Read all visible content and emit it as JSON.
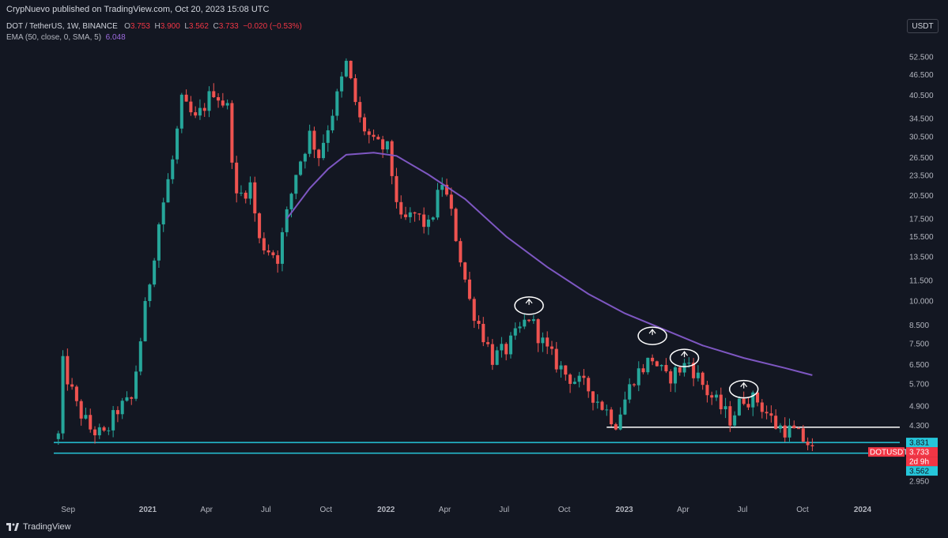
{
  "header": {
    "published": "CrypNuevo published on TradingView.com, Oct 20, 2023 15:08 UTC"
  },
  "legend": {
    "symbol": "DOT / TetherUS, 1W, BINANCE",
    "open_label": "O",
    "open": "3.753",
    "high_label": "H",
    "high": "3.900",
    "low_label": "L",
    "low": "3.562",
    "close_label": "C",
    "close": "3.733",
    "change": "−0.020 (−0.53%)",
    "ema_label": "EMA (50, close, 0, SMA, 5)",
    "ema_value": "6.048"
  },
  "currency_button": "USDT",
  "footer": {
    "brand": "TradingView"
  },
  "colors": {
    "background": "#131722",
    "up": "#26a69a",
    "down": "#ef5350",
    "ema": "#7e57c2",
    "support_line": "#26c6da",
    "white_line": "#ffffff"
  },
  "chart_data": {
    "type": "candlestick",
    "timeframe": "1W",
    "yscale": "log",
    "ylim": [
      2.55,
      60
    ],
    "xrange": [
      "2020-08-10",
      "2024-03-04"
    ],
    "y_ticks": [
      "52.500",
      "46.500",
      "40.500",
      "34.500",
      "30.500",
      "26.500",
      "23.500",
      "20.500",
      "17.500",
      "15.500",
      "13.500",
      "11.500",
      "10.000",
      "8.500",
      "7.500",
      "6.500",
      "5.700",
      "4.900",
      "4.300",
      "2.950"
    ],
    "x_ticks": [
      "Sep",
      "2021",
      "Apr",
      "Jul",
      "Oct",
      "2022",
      "Apr",
      "Jul",
      "Oct",
      "2023",
      "Apr",
      "Jul",
      "Oct",
      "2024"
    ],
    "x_tick_dates": [
      "2020-09-01",
      "2021-01-01",
      "2021-04-01",
      "2021-07-01",
      "2021-10-01",
      "2022-01-01",
      "2022-04-01",
      "2022-07-01",
      "2022-10-01",
      "2023-01-01",
      "2023-04-01",
      "2023-07-01",
      "2023-10-01",
      "2024-01-01"
    ],
    "price_tags": [
      {
        "label": "3.831",
        "value": 3.831,
        "color": "#26c6da"
      },
      {
        "label": "DOTUSDT",
        "value": 3.733,
        "color": "#f23645",
        "extra": "3.733"
      },
      {
        "label": "2d 9h",
        "value": 3.6,
        "color": "#f23645"
      },
      {
        "label": "3.562",
        "value": 3.562,
        "color": "#26c6da"
      }
    ],
    "horizontal_lines": [
      {
        "value": 4.25,
        "start": "2022-12-05",
        "end": "2024-03-04",
        "color": "#ffffff"
      },
      {
        "value": 3.831,
        "start": "2020-08-10",
        "end": "2024-03-04",
        "color": "#26c6da"
      },
      {
        "value": 3.562,
        "start": "2020-08-10",
        "end": "2024-03-04",
        "color": "#26c6da"
      }
    ],
    "anchors": [
      [
        "2020-08-17",
        4.0
      ],
      [
        "2020-08-24",
        6.5
      ],
      [
        "2020-09-14",
        4.9
      ],
      [
        "2020-10-05",
        4.2
      ],
      [
        "2020-10-26",
        4.0
      ],
      [
        "2020-11-16",
        4.8
      ],
      [
        "2020-12-07",
        5.1
      ],
      [
        "2020-12-28",
        9.5
      ],
      [
        "2021-01-18",
        17.0
      ],
      [
        "2021-02-08",
        26.0
      ],
      [
        "2021-02-22",
        38.5
      ],
      [
        "2021-03-15",
        34.0
      ],
      [
        "2021-04-12",
        42.0
      ],
      [
        "2021-05-03",
        37.0
      ],
      [
        "2021-05-17",
        20.0
      ],
      [
        "2021-06-07",
        22.0
      ],
      [
        "2021-06-21",
        15.0
      ],
      [
        "2021-07-19",
        13.5
      ],
      [
        "2021-08-16",
        24.0
      ],
      [
        "2021-09-06",
        31.0
      ],
      [
        "2021-09-20",
        27.0
      ],
      [
        "2021-10-18",
        40.0
      ],
      [
        "2021-11-01",
        50.0
      ],
      [
        "2021-11-22",
        34.0
      ],
      [
        "2021-12-13",
        29.0
      ],
      [
        "2022-01-03",
        28.0
      ],
      [
        "2022-01-24",
        17.0
      ],
      [
        "2022-02-14",
        18.0
      ],
      [
        "2022-03-07",
        16.5
      ],
      [
        "2022-03-28",
        22.5
      ],
      [
        "2022-04-11",
        18.0
      ],
      [
        "2022-05-09",
        10.0
      ],
      [
        "2022-06-13",
        6.8
      ],
      [
        "2022-07-04",
        7.2
      ],
      [
        "2022-08-08",
        9.0
      ],
      [
        "2022-09-05",
        7.1
      ],
      [
        "2022-10-03",
        6.1
      ],
      [
        "2022-11-07",
        5.5
      ],
      [
        "2022-12-19",
        4.4
      ],
      [
        "2023-01-16",
        6.0
      ],
      [
        "2023-02-13",
        6.8
      ],
      [
        "2023-03-06",
        5.9
      ],
      [
        "2023-04-10",
        6.6
      ],
      [
        "2023-05-08",
        5.4
      ],
      [
        "2023-06-12",
        4.5
      ],
      [
        "2023-07-03",
        5.2
      ],
      [
        "2023-07-24",
        5.1
      ],
      [
        "2023-08-21",
        4.3
      ],
      [
        "2023-09-18",
        4.1
      ],
      [
        "2023-10-16",
        3.733
      ]
    ],
    "ema50": [
      [
        "2021-08-02",
        17.5
      ],
      [
        "2021-09-06",
        21.5
      ],
      [
        "2021-10-04",
        24.5
      ],
      [
        "2021-11-01",
        27.0
      ],
      [
        "2021-12-13",
        27.4
      ],
      [
        "2022-01-17",
        26.8
      ],
      [
        "2022-03-07",
        23.6
      ],
      [
        "2022-05-02",
        20.0
      ],
      [
        "2022-07-04",
        15.5
      ],
      [
        "2022-09-05",
        12.6
      ],
      [
        "2022-11-07",
        10.5
      ],
      [
        "2023-01-02",
        9.2
      ],
      [
        "2023-03-06",
        8.2
      ],
      [
        "2023-05-01",
        7.4
      ],
      [
        "2023-07-03",
        6.8
      ],
      [
        "2023-09-04",
        6.35
      ],
      [
        "2023-10-16",
        6.048
      ]
    ],
    "annotations": [
      {
        "type": "circle-arrow",
        "date": "2022-08-08",
        "value": 9.7
      },
      {
        "type": "circle-arrow",
        "date": "2023-02-13",
        "value": 7.9
      },
      {
        "type": "circle-arrow",
        "date": "2023-04-03",
        "value": 6.8
      },
      {
        "type": "circle-arrow",
        "date": "2023-07-03",
        "value": 5.5
      }
    ]
  }
}
